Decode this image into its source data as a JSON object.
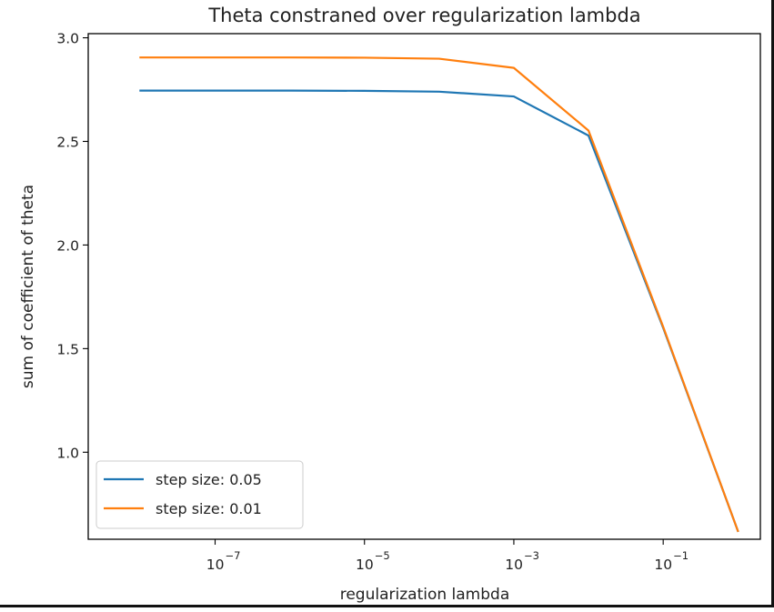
{
  "chart_data": {
    "type": "line",
    "title": "Theta constraned over regularization lambda",
    "xlabel": "regularization lambda",
    "ylabel": "sum of coefficient of theta",
    "xscale": "log",
    "xlim": [
      2e-09,
      2.0
    ],
    "ylim": [
      0.58,
      3.02
    ],
    "grid": false,
    "legend_position": "lower-left",
    "x_ticks": [
      {
        "value": 1e-07,
        "base": "10",
        "exp": "−7"
      },
      {
        "value": 1e-05,
        "base": "10",
        "exp": "−5"
      },
      {
        "value": 0.001,
        "base": "10",
        "exp": "−3"
      },
      {
        "value": 0.1,
        "base": "10",
        "exp": "−1"
      }
    ],
    "y_ticks": [
      {
        "value": 1.0,
        "label": "1.0"
      },
      {
        "value": 1.5,
        "label": "1.5"
      },
      {
        "value": 2.0,
        "label": "2.0"
      },
      {
        "value": 2.5,
        "label": "2.5"
      },
      {
        "value": 3.0,
        "label": "3.0"
      }
    ],
    "x": [
      1e-08,
      1e-07,
      1e-06,
      1e-05,
      0.0001,
      0.001,
      0.01,
      0.1,
      1
    ],
    "series": [
      {
        "name": "step size: 0.05",
        "color": "#1f77b4",
        "values": [
          2.745,
          2.745,
          2.745,
          2.744,
          2.74,
          2.717,
          2.528,
          1.6,
          0.62
        ]
      },
      {
        "name": "step size: 0.01",
        "color": "#ff7f0e",
        "values": [
          2.905,
          2.905,
          2.905,
          2.904,
          2.899,
          2.855,
          2.552,
          1.605,
          0.62
        ]
      }
    ]
  }
}
